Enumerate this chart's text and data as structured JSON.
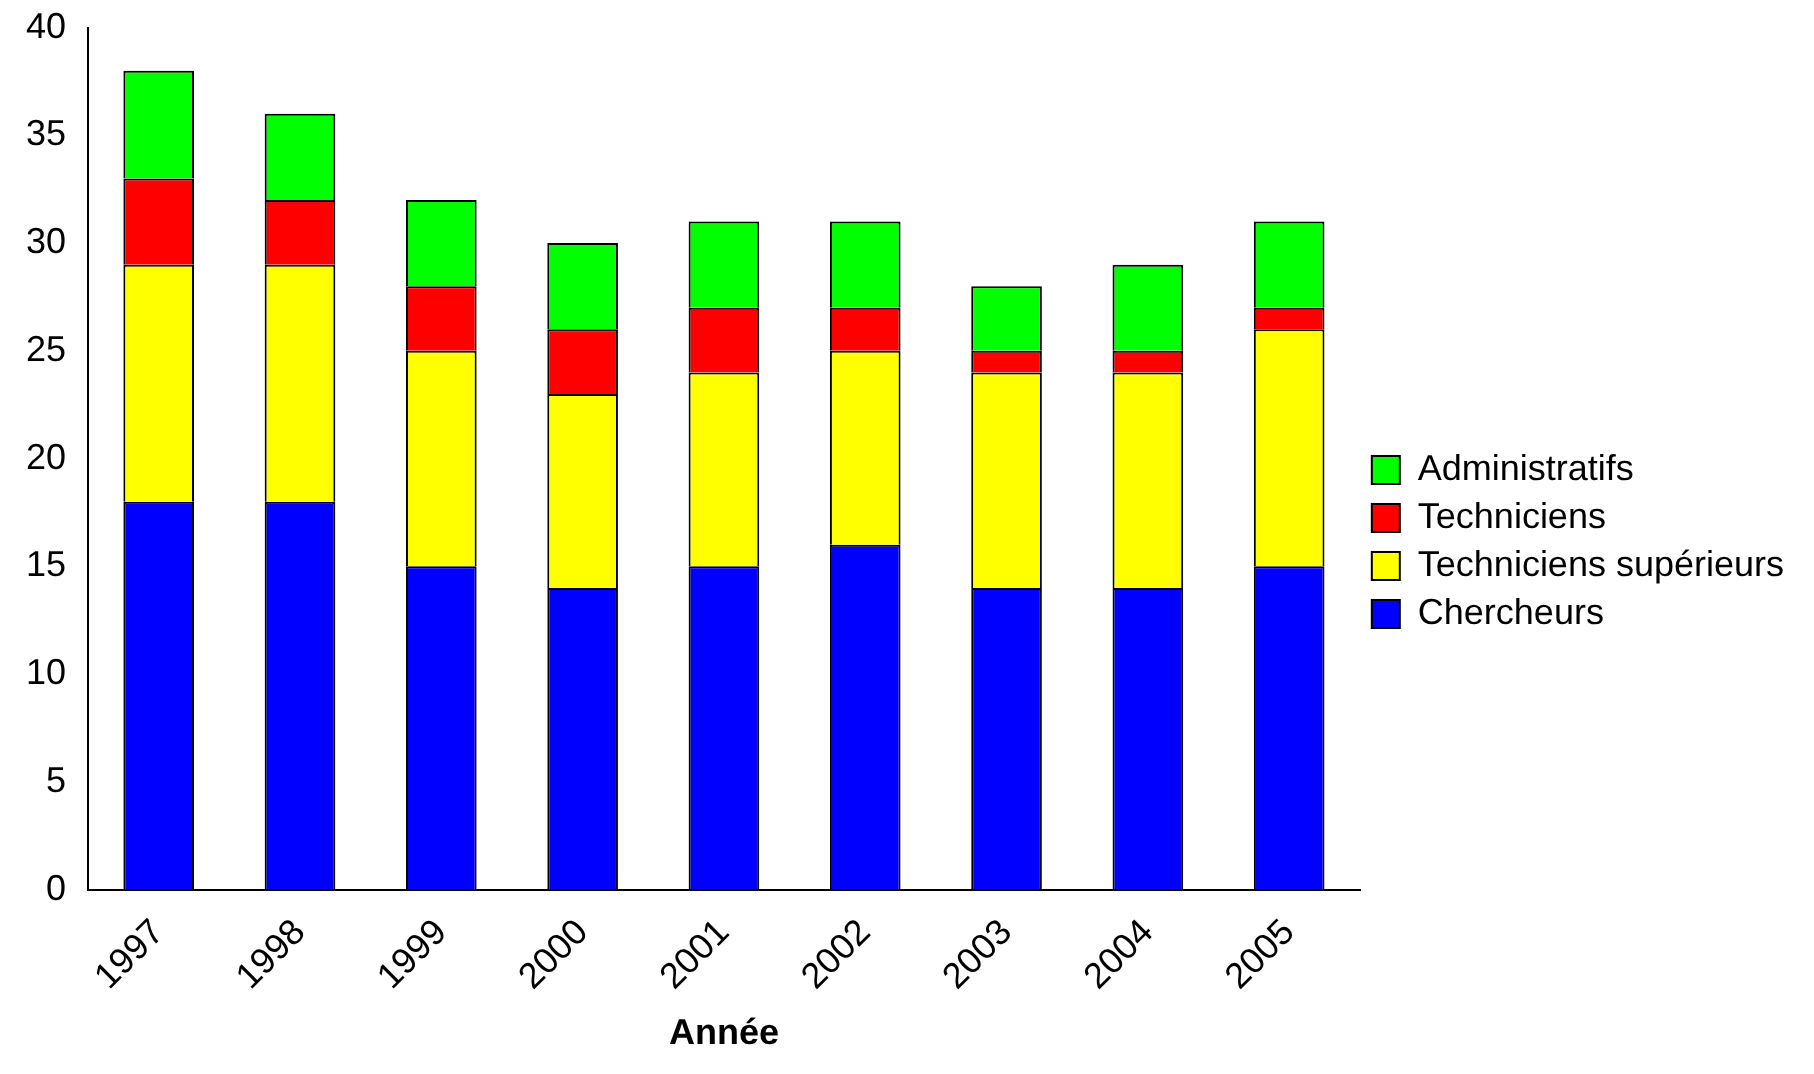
{
  "chart_data": {
    "type": "bar",
    "xlabel": "Année",
    "categories": [
      "1997",
      "1998",
      "1999",
      "2000",
      "2001",
      "2002",
      "2003",
      "2004",
      "2005"
    ],
    "series": [
      {
        "name": "Chercheurs",
        "color": "#0000ff",
        "values": [
          18,
          18,
          15,
          14,
          15,
          16,
          14,
          14,
          15
        ]
      },
      {
        "name": "Techniciens supérieurs",
        "color": "#ffff00",
        "values": [
          11,
          11,
          10,
          9,
          9,
          9,
          10,
          10,
          11
        ]
      },
      {
        "name": "Techniciens",
        "color": "#ff0000",
        "values": [
          4,
          3,
          3,
          3,
          3,
          2,
          1,
          1,
          1
        ]
      },
      {
        "name": "Administratifs",
        "color": "#00ff00",
        "values": [
          5,
          4,
          4,
          4,
          4,
          4,
          3,
          4,
          4
        ]
      }
    ],
    "stacked": true,
    "ylim": [
      0,
      40
    ],
    "yticks": [
      0,
      5,
      10,
      15,
      20,
      25,
      30,
      35,
      40
    ],
    "grid": false,
    "legend": "right"
  }
}
